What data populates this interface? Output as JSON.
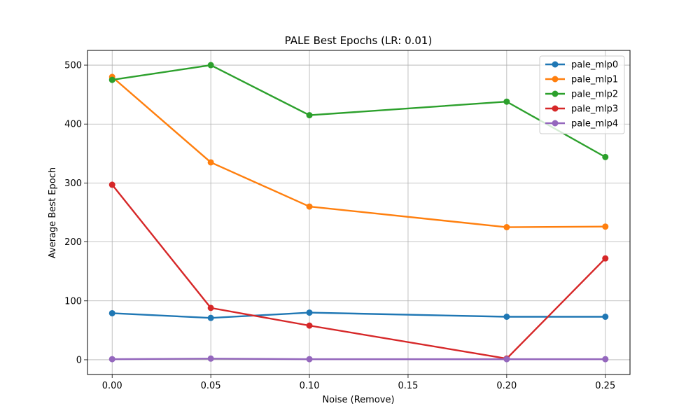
{
  "chart_data": {
    "type": "line",
    "title": "PALE Best Epochs (LR: 0.01)",
    "xlabel": "Noise (Remove)",
    "ylabel": "Average Best Epoch",
    "x": [
      0.0,
      0.05,
      0.1,
      0.2,
      0.25
    ],
    "xlim": [
      -0.0125,
      0.2625
    ],
    "ylim": [
      -25,
      525
    ],
    "xticks": [
      0.0,
      0.05,
      0.1,
      0.15,
      0.2,
      0.25
    ],
    "xtick_labels": [
      "0.00",
      "0.05",
      "0.10",
      "0.15",
      "0.20",
      "0.25"
    ],
    "yticks": [
      0,
      100,
      200,
      300,
      400,
      500
    ],
    "ytick_labels": [
      "0",
      "100",
      "200",
      "300",
      "400",
      "500"
    ],
    "grid": true,
    "legend_position": "top-right",
    "series": [
      {
        "name": "pale_mlp0",
        "color": "#1f77b4",
        "values": [
          79,
          71,
          80,
          73,
          73
        ]
      },
      {
        "name": "pale_mlp1",
        "color": "#ff7f0e",
        "values": [
          480,
          335,
          260,
          225,
          226
        ]
      },
      {
        "name": "pale_mlp2",
        "color": "#2ca02c",
        "values": [
          475,
          500,
          415,
          438,
          344
        ]
      },
      {
        "name": "pale_mlp3",
        "color": "#d62728",
        "values": [
          297,
          88,
          58,
          2,
          172
        ]
      },
      {
        "name": "pale_mlp4",
        "color": "#9467bd",
        "values": [
          1,
          2,
          1,
          1,
          1
        ]
      }
    ]
  }
}
